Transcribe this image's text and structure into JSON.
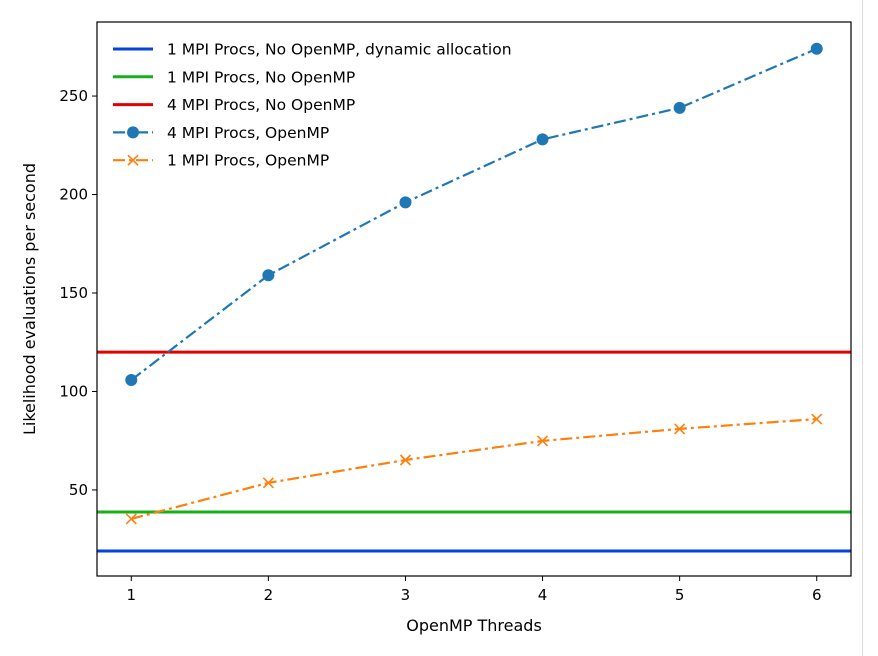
{
  "chart_data": {
    "type": "line",
    "title": "",
    "xlabel": "OpenMP Threads",
    "ylabel": "Likelihood evaluations per second",
    "xlim": [
      0.75,
      6.25
    ],
    "ylim": [
      6.3,
      287.6
    ],
    "xticks": [
      1,
      2,
      3,
      4,
      5,
      6
    ],
    "yticks": [
      50,
      100,
      150,
      200,
      250
    ],
    "grid": false,
    "legend_position": "top-left",
    "x": [
      1,
      2,
      3,
      4,
      5,
      6
    ],
    "hlines": [
      {
        "name": "1 MPI Procs, No OpenMP, dynamic allocation",
        "value": 19,
        "color": "#0343df"
      },
      {
        "name": "1 MPI Procs, No OpenMP",
        "value": 38.8,
        "color": "#15b01a"
      },
      {
        "name": "4 MPI Procs, No OpenMP",
        "value": 120,
        "color": "#e50000"
      }
    ],
    "series": [
      {
        "name": "4 MPI Procs, OpenMP",
        "values": [
          105.8,
          159,
          196,
          228,
          244,
          274
        ],
        "color": "#1f77b4",
        "marker": "circle"
      },
      {
        "name": "1 MPI Procs, OpenMP",
        "values": [
          35.3,
          53.6,
          65.2,
          74.9,
          81,
          86
        ],
        "color": "#ff7f0e",
        "marker": "x"
      }
    ]
  }
}
